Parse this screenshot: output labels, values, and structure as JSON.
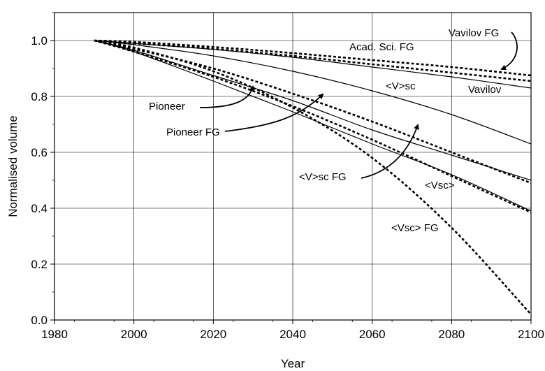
{
  "chart_data": {
    "type": "line",
    "xlabel": "Year",
    "ylabel": "Normalised volume",
    "xlim": [
      1980,
      2100
    ],
    "ylim": [
      0.0,
      1.1
    ],
    "xticks": [
      1980,
      2000,
      2020,
      2040,
      2060,
      2080,
      2100
    ],
    "yticks": [
      0.0,
      0.2,
      0.4,
      0.6,
      0.8,
      1.0
    ],
    "xtick_labels": [
      "1980",
      "2000",
      "2020",
      "2040",
      "2060",
      "2080",
      "2100"
    ],
    "ytick_labels": [
      "0.0",
      "0.2",
      "0.4",
      "0.6",
      "0.8",
      "1.0"
    ],
    "grid": true,
    "series": [
      {
        "name": "Vavilov FG",
        "style": "dashed",
        "x": [
          1990,
          2000,
          2020,
          2040,
          2060,
          2080,
          2100
        ],
        "y": [
          1.0,
          0.995,
          0.977,
          0.955,
          0.93,
          0.905,
          0.875
        ]
      },
      {
        "name": "Acad. Sci. FG",
        "style": "dashed",
        "x": [
          1990,
          2000,
          2020,
          2040,
          2060,
          2080,
          2100
        ],
        "y": [
          1.0,
          0.99,
          0.97,
          0.945,
          0.915,
          0.885,
          0.855
        ]
      },
      {
        "name": "Vavilov",
        "style": "solid",
        "x": [
          1990,
          2000,
          2020,
          2040,
          2060,
          2080,
          2100
        ],
        "y": [
          1.0,
          0.99,
          0.968,
          0.94,
          0.905,
          0.87,
          0.83
        ]
      },
      {
        "name": "<V>sc",
        "style": "solid",
        "x": [
          1990,
          2000,
          2020,
          2040,
          2060,
          2080,
          2100
        ],
        "y": [
          1.0,
          0.985,
          0.945,
          0.89,
          0.82,
          0.735,
          0.63
        ]
      },
      {
        "name": "<V>sc FG",
        "style": "dashed",
        "x": [
          1990,
          2000,
          2020,
          2040,
          2060,
          2080,
          2100
        ],
        "y": [
          1.0,
          0.97,
          0.9,
          0.81,
          0.71,
          0.6,
          0.49
        ]
      },
      {
        "name": "Pioneer",
        "style": "solid",
        "x": [
          1990,
          2000,
          2020,
          2040,
          2060,
          2080,
          2100
        ],
        "y": [
          1.0,
          0.965,
          0.875,
          0.785,
          0.68,
          0.59,
          0.5
        ]
      },
      {
        "name": "Pioneer FG",
        "style": "dashed",
        "x": [
          1990,
          2000,
          2020,
          2040,
          2060,
          2080,
          2100
        ],
        "y": [
          1.0,
          0.96,
          0.87,
          0.765,
          0.645,
          0.515,
          0.385
        ]
      },
      {
        "name": "<Vsc>",
        "style": "solid",
        "x": [
          1990,
          2000,
          2020,
          2040,
          2060,
          2080,
          2100
        ],
        "y": [
          1.0,
          0.96,
          0.855,
          0.745,
          0.63,
          0.52,
          0.39
        ]
      },
      {
        "name": "<Vsc> FG",
        "style": "dashed",
        "x": [
          1990,
          2000,
          2020,
          2040,
          2060,
          2080,
          2100
        ],
        "y": [
          1.0,
          0.975,
          0.89,
          0.76,
          0.58,
          0.33,
          0.02
        ]
      }
    ],
    "annotations": [
      {
        "text": "Vavilov FG",
        "series": "Vavilov FG"
      },
      {
        "text": "Acad. Sci. FG",
        "series": "Acad. Sci. FG"
      },
      {
        "text": "<V>sc",
        "series": "<V>sc"
      },
      {
        "text": "Vavilov",
        "series": "Vavilov"
      },
      {
        "text": "Pioneer",
        "series": "Pioneer"
      },
      {
        "text": "Pioneer FG",
        "series": "Pioneer FG"
      },
      {
        "text": "<V>sc FG",
        "series": "<V>sc FG"
      },
      {
        "text": "<Vsc>",
        "series": "<Vsc>"
      },
      {
        "text": "<Vsc> FG",
        "series": "<Vsc> FG"
      }
    ]
  }
}
